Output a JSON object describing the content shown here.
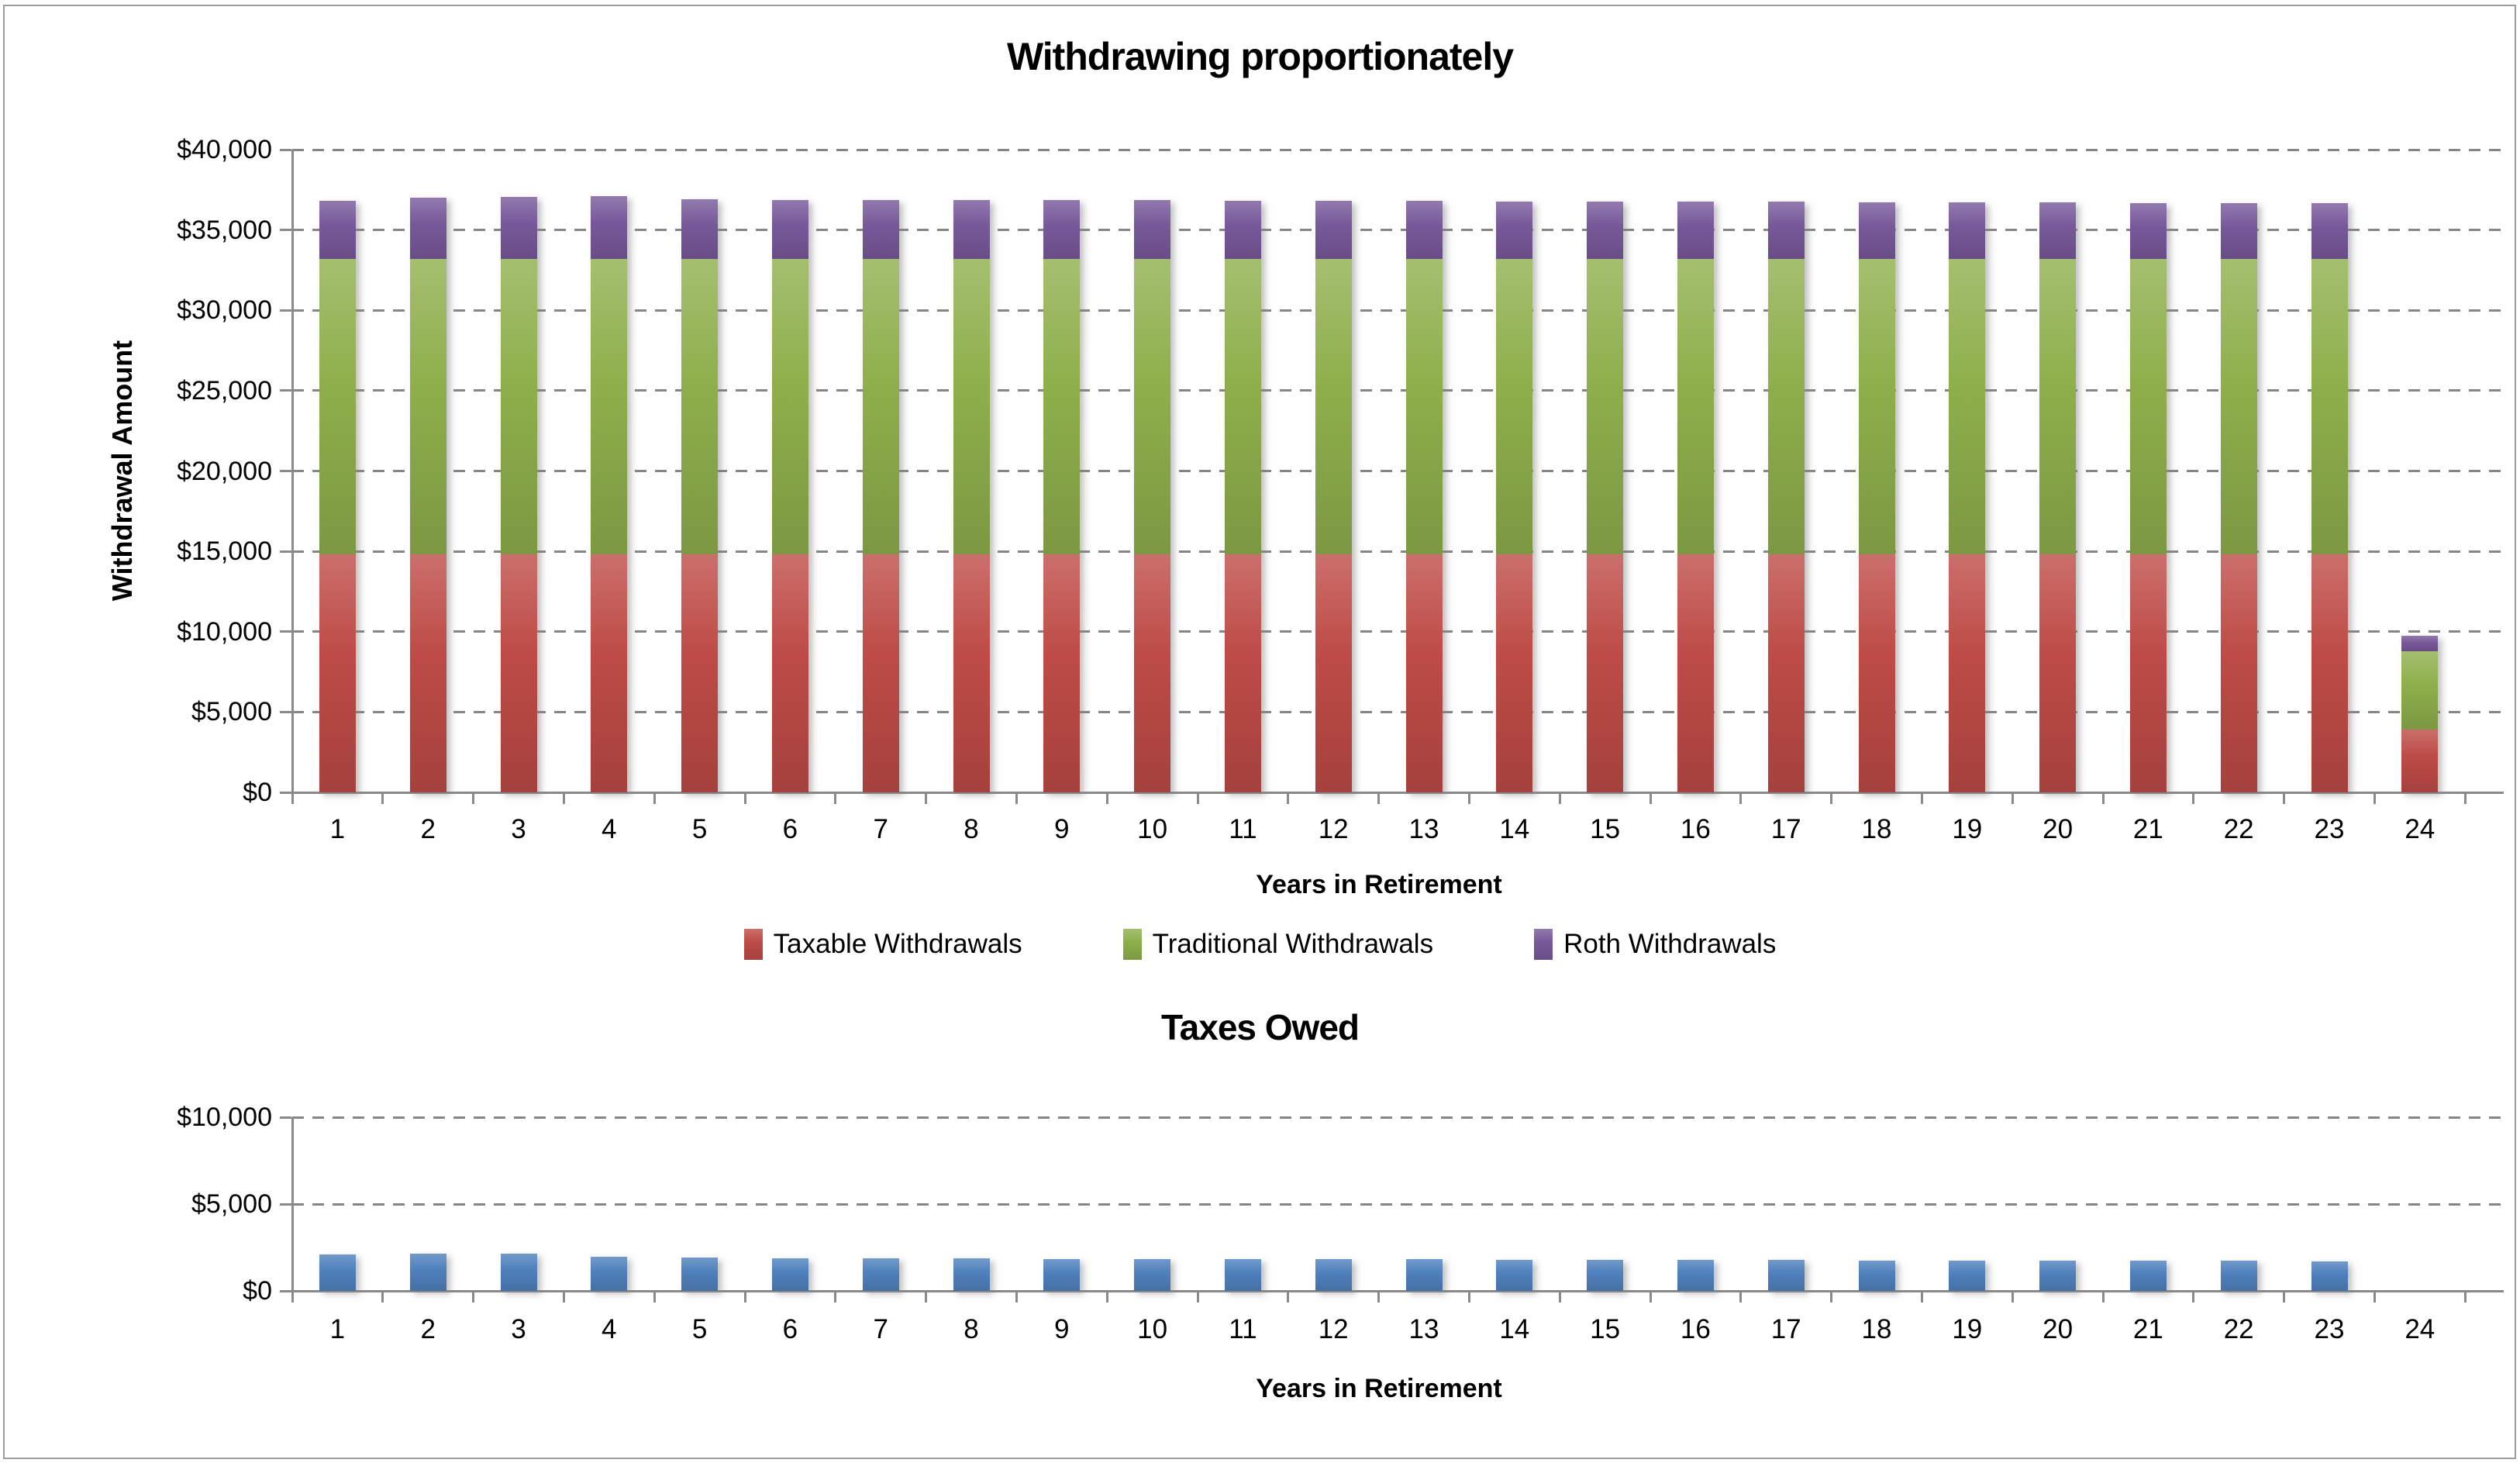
{
  "chart_data": [
    {
      "type": "bar",
      "stacked": true,
      "title": "Withdrawing proportionately",
      "xlabel": "Years in Retirement",
      "ylabel": "Withdrawal Amount",
      "ylim": [
        0,
        40000
      ],
      "ytick_step": 5000,
      "ytick_labels": [
        "$0",
        "$5,000",
        "$10,000",
        "$15,000",
        "$20,000",
        "$25,000",
        "$30,000",
        "$35,000",
        "$40,000"
      ],
      "grid": "horizontal-dashed",
      "legend_position": "bottom",
      "categories": [
        1,
        2,
        3,
        4,
        5,
        6,
        7,
        8,
        9,
        10,
        11,
        12,
        13,
        14,
        15,
        16,
        17,
        18,
        19,
        20,
        21,
        22,
        23,
        24
      ],
      "series": [
        {
          "name": "Taxable Withdrawals",
          "color": "#BE4B47",
          "values": [
            14800,
            14800,
            14800,
            14800,
            14800,
            14800,
            14800,
            14800,
            14800,
            14800,
            14800,
            14800,
            14800,
            14800,
            14800,
            14800,
            14800,
            14800,
            14800,
            14800,
            14800,
            14800,
            14800,
            3900
          ]
        },
        {
          "name": "Traditional Withdrawals",
          "color": "#8FAF4C",
          "values": [
            18400,
            18400,
            18400,
            18400,
            18400,
            18400,
            18400,
            18400,
            18400,
            18400,
            18400,
            18400,
            18400,
            18400,
            18400,
            18400,
            18400,
            18400,
            18400,
            18400,
            18400,
            18400,
            18400,
            4900
          ]
        },
        {
          "name": "Roth Withdrawals",
          "color": "#77599A",
          "values": [
            3600,
            3800,
            3850,
            3900,
            3700,
            3680,
            3670,
            3660,
            3650,
            3640,
            3630,
            3620,
            3600,
            3590,
            3580,
            3560,
            3550,
            3540,
            3520,
            3510,
            3490,
            3470,
            3450,
            950
          ]
        }
      ]
    },
    {
      "type": "bar",
      "stacked": false,
      "title": "Taxes Owed",
      "xlabel": "Years in Retirement",
      "ylabel": "",
      "ylim": [
        0,
        10000
      ],
      "ytick_step": 5000,
      "ytick_labels": [
        "$0",
        "$5,000",
        "$10,000"
      ],
      "grid": "horizontal-dashed",
      "legend_position": "none",
      "categories": [
        1,
        2,
        3,
        4,
        5,
        6,
        7,
        8,
        9,
        10,
        11,
        12,
        13,
        14,
        15,
        16,
        17,
        18,
        19,
        20,
        21,
        22,
        23,
        24
      ],
      "series": [
        {
          "name": "Taxes Owed",
          "color": "#4F81BD",
          "values": [
            2100,
            2150,
            2150,
            1950,
            1900,
            1880,
            1870,
            1860,
            1850,
            1840,
            1830,
            1820,
            1810,
            1800,
            1790,
            1780,
            1770,
            1760,
            1750,
            1740,
            1730,
            1720,
            1710,
            0
          ]
        }
      ]
    }
  ]
}
